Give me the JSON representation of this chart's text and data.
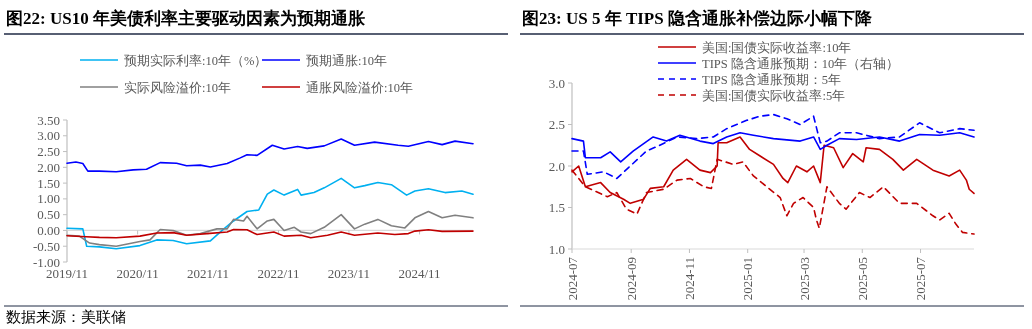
{
  "chart_data": [
    {
      "type": "line",
      "title": "图22:  US10 年美债利率主要驱动因素为预期通胀",
      "legend": "top",
      "grid": false,
      "annotations": [
        "数据来源：美联储"
      ],
      "xlim": [
        "2019-11-01",
        "2025-08-05"
      ],
      "ylim": [
        -1,
        3.5
      ],
      "ref_lines": [
        {
          "axis": "y",
          "value": 0,
          "color": "#d9d9d9"
        }
      ],
      "xticks": [
        {
          "value": "2019-11",
          "label": "2019/11"
        },
        {
          "value": "2020-11",
          "label": "2020/11"
        },
        {
          "value": "2021-11",
          "label": "2021/11"
        },
        {
          "value": "2022-11",
          "label": "2022/11"
        },
        {
          "value": "2023-11",
          "label": "2023/11"
        },
        {
          "value": "2024-11",
          "label": "2024/11"
        }
      ],
      "yticks": [
        {
          "value": -1,
          "label": "-1.00"
        },
        {
          "value": -0.5,
          "label": "-0.50"
        },
        {
          "value": 0,
          "label": "0.00"
        },
        {
          "value": 0.5,
          "label": "0.50"
        },
        {
          "value": 1,
          "label": "1.00"
        },
        {
          "value": 1.5,
          "label": "1.50"
        },
        {
          "value": 2,
          "label": "2.00"
        },
        {
          "value": 2.5,
          "label": "2.50"
        },
        {
          "value": 3,
          "label": "3.00"
        },
        {
          "value": 3.5,
          "label": "3.50"
        }
      ],
      "series": [
        {
          "name": "预期实际利率:10年（%）",
          "color": "#00b0f0",
          "x": [
            "2019-11-01",
            "2020-01-22",
            "2020-02-11",
            "2020-04-17",
            "2020-07-13",
            "2020-11-13",
            "2021-02-08",
            "2021-05-04",
            "2021-07-13",
            "2021-11-13",
            "2022-01-22",
            "2022-03-13",
            "2022-05-22",
            "2022-07-22",
            "2022-09-04",
            "2022-10-08",
            "2022-11-30",
            "2023-02-08",
            "2023-02-26",
            "2023-05-04",
            "2023-06-26",
            "2023-09-22",
            "2023-11-30",
            "2024-01-22",
            "2024-03-30",
            "2024-06-08",
            "2024-08-26",
            "2024-10-08",
            "2024-12-17",
            "2025-03-13",
            "2025-06-08",
            "2025-08-05"
          ],
          "values": [
            0.07,
            0.05,
            -0.5,
            -0.52,
            -0.58,
            -0.48,
            -0.3,
            -0.32,
            -0.42,
            -0.33,
            0.05,
            0.3,
            0.6,
            0.65,
            1.15,
            1.28,
            1.12,
            1.3,
            1.12,
            1.2,
            1.35,
            1.65,
            1.35,
            1.42,
            1.52,
            1.45,
            1.12,
            1.25,
            1.32,
            1.2,
            1.25,
            1.15
          ]
        },
        {
          "name": "预期通胀:10年",
          "color": "#0000ff",
          "x": [
            "2019-11-01",
            "2019-12-17",
            "2020-01-22",
            "2020-02-17",
            "2020-04-17",
            "2020-07-13",
            "2020-10-09",
            "2020-12-17",
            "2021-02-26",
            "2021-05-22",
            "2021-07-13",
            "2021-09-22",
            "2021-11-13",
            "2022-02-08",
            "2022-04-17",
            "2022-05-22",
            "2022-07-13",
            "2022-09-30",
            "2022-11-30",
            "2023-02-08",
            "2023-03-30",
            "2023-06-26",
            "2023-09-22",
            "2023-11-30",
            "2024-03-13",
            "2024-07-13",
            "2024-09-04",
            "2024-12-17",
            "2025-02-26",
            "2025-05-04",
            "2025-08-05"
          ],
          "values": [
            2.13,
            2.17,
            2.12,
            1.88,
            1.88,
            1.86,
            1.92,
            1.94,
            2.15,
            2.13,
            2.05,
            2.07,
            2.01,
            2.12,
            2.3,
            2.4,
            2.38,
            2.7,
            2.58,
            2.66,
            2.6,
            2.68,
            2.9,
            2.7,
            2.8,
            2.7,
            2.67,
            2.82,
            2.72,
            2.83,
            2.75
          ]
        },
        {
          "name": "实际风险溢价:10年",
          "color": "#808080",
          "x": [
            "2019-11-01",
            "2020-01-04",
            "2020-02-26",
            "2020-04-17",
            "2020-07-13",
            "2020-11-13",
            "2021-01-04",
            "2021-02-26",
            "2021-05-04",
            "2021-07-13",
            "2021-09-22",
            "2021-12-17",
            "2022-02-08",
            "2022-03-13",
            "2022-05-04",
            "2022-05-22",
            "2022-07-13",
            "2022-09-04",
            "2022-10-08",
            "2022-11-30",
            "2023-01-22",
            "2023-02-26",
            "2023-04-17",
            "2023-06-26",
            "2023-09-22",
            "2023-11-30",
            "2024-01-22",
            "2024-03-30",
            "2024-06-08",
            "2024-08-17",
            "2024-10-08",
            "2024-12-17",
            "2025-02-26",
            "2025-05-04",
            "2025-08-05"
          ],
          "values": [
            -0.15,
            -0.18,
            -0.4,
            -0.45,
            -0.5,
            -0.35,
            -0.3,
            0.03,
            0.0,
            -0.15,
            -0.1,
            0.05,
            0.05,
            0.35,
            0.3,
            0.45,
            0.05,
            0.3,
            0.35,
            0.0,
            0.1,
            -0.05,
            -0.1,
            0.1,
            0.5,
            0.05,
            0.2,
            0.35,
            0.15,
            0.08,
            0.4,
            0.6,
            0.4,
            0.48,
            0.4
          ]
        },
        {
          "name": "通胀风险溢价:10年",
          "color": "#c00000",
          "x": [
            "2019-11-01",
            "2020-02-08",
            "2020-04-17",
            "2020-07-13",
            "2020-11-13",
            "2021-02-08",
            "2021-05-04",
            "2021-07-13",
            "2021-10-26",
            "2022-02-08",
            "2022-03-13",
            "2022-05-22",
            "2022-07-13",
            "2022-10-08",
            "2022-11-30",
            "2023-02-26",
            "2023-04-17",
            "2023-07-13",
            "2023-09-22",
            "2023-11-30",
            "2024-03-30",
            "2024-06-26",
            "2024-09-04",
            "2024-10-08",
            "2024-12-17",
            "2025-02-26",
            "2025-08-05"
          ],
          "values": [
            -0.17,
            -0.2,
            -0.22,
            -0.23,
            -0.18,
            -0.08,
            -0.07,
            -0.15,
            -0.1,
            -0.05,
            0.03,
            0.02,
            -0.13,
            -0.05,
            -0.18,
            -0.15,
            -0.23,
            -0.15,
            -0.05,
            -0.15,
            -0.08,
            -0.13,
            -0.1,
            -0.02,
            0.02,
            -0.03,
            -0.02
          ]
        }
      ]
    },
    {
      "type": "line",
      "title": "图23:  US 5 年 TIPS 隐含通胀补偿边际小幅下降",
      "legend": "top left",
      "grid": false,
      "xlim": [
        "2024-07-01",
        "2025-08-26"
      ],
      "ylim": [
        1,
        3
      ],
      "xticks": [
        "2024-07",
        "2024-09",
        "2024-11",
        "2025-01",
        "2025-03",
        "2025-05",
        "2025-07"
      ],
      "yticks": [
        {
          "value": 1,
          "label": "1.0"
        },
        {
          "value": 1.5,
          "label": "1.5"
        },
        {
          "value": 2,
          "label": "2.0"
        },
        {
          "value": 2.5,
          "label": "2.5"
        },
        {
          "value": 3,
          "label": "3.0"
        }
      ],
      "series": [
        {
          "name": "美国:国债实际收益率:10年",
          "color": "#c00000",
          "line_style": "solid",
          "x": [
            "2024-07-01",
            "2024-07-08",
            "2024-07-15",
            "2024-07-31",
            "2024-08-10",
            "2024-08-24",
            "2024-08-31",
            "2024-09-14",
            "2024-09-21",
            "2024-10-05",
            "2024-10-15",
            "2024-10-29",
            "2024-11-12",
            "2024-11-23",
            "2024-11-30",
            "2024-12-01",
            "2024-12-10",
            "2024-12-24",
            "2025-01-03",
            "2025-01-14",
            "2025-01-28",
            "2025-02-07",
            "2025-02-12",
            "2025-02-21",
            "2025-03-04",
            "2025-03-11",
            "2025-03-18",
            "2025-03-22",
            "2025-04-01",
            "2025-04-11",
            "2025-04-21",
            "2025-05-02",
            "2025-05-05",
            "2025-05-19",
            "2025-06-02",
            "2025-06-13",
            "2025-06-27",
            "2025-07-14",
            "2025-07-31",
            "2025-08-11",
            "2025-08-18",
            "2025-08-21",
            "2025-08-26"
          ],
          "values": [
            1.93,
            2.0,
            1.75,
            1.8,
            1.68,
            1.6,
            1.55,
            1.6,
            1.73,
            1.75,
            1.95,
            2.08,
            1.95,
            1.92,
            2.0,
            2.28,
            2.28,
            2.35,
            2.2,
            2.12,
            2.02,
            1.85,
            1.8,
            2.0,
            1.93,
            2.0,
            1.8,
            2.25,
            2.22,
            1.98,
            2.15,
            2.05,
            2.22,
            2.2,
            2.08,
            1.95,
            2.08,
            1.95,
            1.88,
            1.95,
            1.83,
            1.72,
            1.67
          ]
        },
        {
          "name": "TIPS 隐含通胀预期：10年（右轴）",
          "color": "#0000ff",
          "line_style": "solid",
          "x": [
            "2024-07-01",
            "2024-07-13",
            "2024-07-15",
            "2024-07-31",
            "2024-08-10",
            "2024-08-21",
            "2024-09-03",
            "2024-09-24",
            "2024-10-08",
            "2024-10-22",
            "2024-11-12",
            "2024-11-26",
            "2024-12-10",
            "2024-12-24",
            "2025-01-07",
            "2025-01-28",
            "2025-02-25",
            "2025-03-11",
            "2025-03-18",
            "2025-03-25",
            "2025-04-07",
            "2025-04-25",
            "2025-05-19",
            "2025-06-09",
            "2025-06-30",
            "2025-07-21",
            "2025-08-11",
            "2025-08-26"
          ],
          "values": [
            2.33,
            2.3,
            2.1,
            2.1,
            2.17,
            2.05,
            2.18,
            2.35,
            2.3,
            2.37,
            2.3,
            2.27,
            2.35,
            2.4,
            2.37,
            2.33,
            2.3,
            2.35,
            2.2,
            2.25,
            2.33,
            2.32,
            2.35,
            2.3,
            2.38,
            2.37,
            2.4,
            2.35
          ]
        },
        {
          "name": "TIPS 隐含通胀预期：5年",
          "color": "#0000ff",
          "line_style": "dashed",
          "x": [
            "2024-07-01",
            "2024-07-13",
            "2024-07-17",
            "2024-08-03",
            "2024-08-17",
            "2024-08-31",
            "2024-09-17",
            "2024-10-01",
            "2024-10-19",
            "2024-11-09",
            "2024-11-26",
            "2024-12-10",
            "2024-12-31",
            "2025-01-14",
            "2025-01-28",
            "2025-02-11",
            "2025-02-25",
            "2025-03-11",
            "2025-03-18",
            "2025-03-25",
            "2025-04-07",
            "2025-04-25",
            "2025-05-19",
            "2025-06-09",
            "2025-06-30",
            "2025-07-21",
            "2025-08-11",
            "2025-08-26"
          ],
          "values": [
            2.18,
            2.18,
            1.9,
            1.93,
            1.85,
            2.0,
            2.18,
            2.25,
            2.35,
            2.33,
            2.35,
            2.45,
            2.55,
            2.6,
            2.62,
            2.57,
            2.5,
            2.6,
            2.28,
            2.3,
            2.4,
            2.4,
            2.33,
            2.35,
            2.52,
            2.4,
            2.45,
            2.43
          ]
        },
        {
          "name": "美国:国债实际收益率:5年",
          "color": "#c00000",
          "line_style": "dashed",
          "x": [
            "2024-07-01",
            "2024-07-15",
            "2024-08-07",
            "2024-08-17",
            "2024-08-27",
            "2024-09-07",
            "2024-09-17",
            "2024-10-05",
            "2024-10-19",
            "2024-11-02",
            "2024-11-16",
            "2024-11-24",
            "2024-11-30",
            "2024-12-17",
            "2024-12-27",
            "2025-01-07",
            "2025-01-21",
            "2025-02-04",
            "2025-02-11",
            "2025-02-18",
            "2025-02-28",
            "2025-03-11",
            "2025-03-14",
            "2025-03-17",
            "2025-03-25",
            "2025-04-07",
            "2025-04-14",
            "2025-04-28",
            "2025-05-09",
            "2025-05-23",
            "2025-06-09",
            "2025-06-27",
            "2025-07-14",
            "2025-07-21",
            "2025-07-31",
            "2025-08-07",
            "2025-08-14",
            "2025-08-26"
          ],
          "values": [
            1.95,
            1.75,
            1.63,
            1.68,
            1.48,
            1.42,
            1.68,
            1.72,
            1.83,
            1.85,
            1.75,
            1.73,
            2.08,
            2.02,
            2.05,
            1.88,
            1.75,
            1.62,
            1.4,
            1.55,
            1.62,
            1.5,
            1.35,
            1.25,
            1.75,
            1.55,
            1.48,
            1.68,
            1.62,
            1.75,
            1.55,
            1.55,
            1.4,
            1.35,
            1.43,
            1.3,
            1.2,
            1.18
          ]
        }
      ]
    }
  ]
}
